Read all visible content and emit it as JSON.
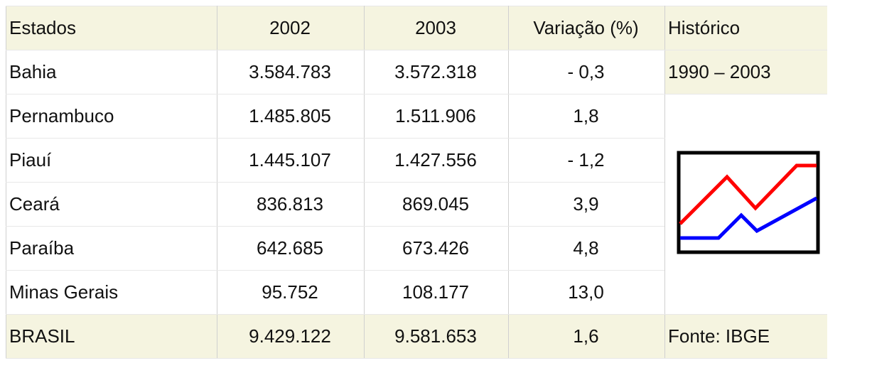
{
  "table": {
    "header": [
      "Estados",
      "2002",
      "2003",
      "Variação (%)",
      "Histórico"
    ],
    "rows": [
      [
        "Bahia",
        "3.584.783",
        "3.572.318",
        "- 0,3"
      ],
      [
        "Pernambuco",
        "1.485.805",
        "1.511.906",
        "1,8"
      ],
      [
        "Piauí",
        "1.445.107",
        "1.427.556",
        "- 1,2"
      ],
      [
        "Ceará",
        "836.813",
        "869.045",
        "3,9"
      ],
      [
        "Paraíba",
        "642.685",
        "673.426",
        "4,8"
      ],
      [
        "Minas Gerais",
        "95.752",
        "108.177",
        "13,0"
      ],
      [
        "BRASIL",
        "9.429.122",
        "9.581.653",
        "1,6"
      ]
    ],
    "historico": [
      "1990 – 2003",
      "Fonte: IBGE"
    ]
  }
}
